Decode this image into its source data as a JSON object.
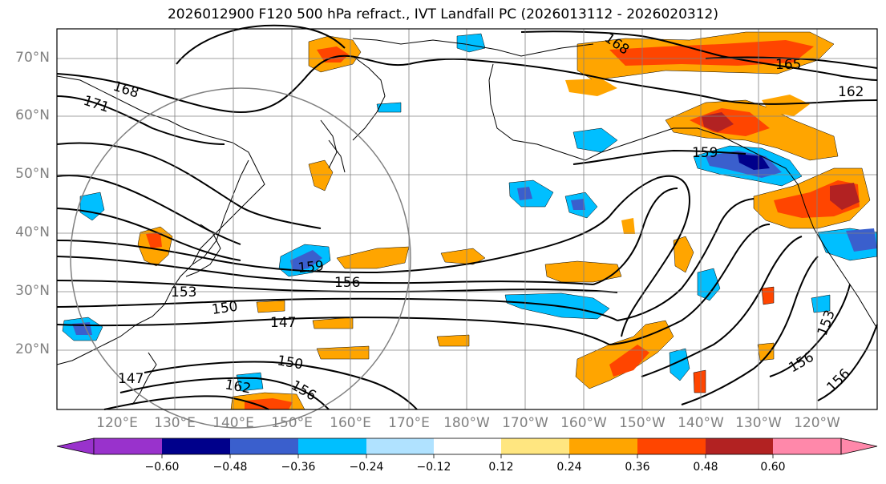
{
  "title": "2026012900 F120 500 hPa refract., IVT Landfall PC (2026013112 - 2026020312)",
  "lat_labels": [
    "70°N",
    "60°N",
    "50°N",
    "40°N",
    "30°N",
    "20°N"
  ],
  "lon_labels": [
    "120°E",
    "130°E",
    "140°E",
    "150°E",
    "160°E",
    "170°E",
    "180°W",
    "170°W",
    "160°W",
    "150°W",
    "140°W",
    "130°W",
    "120°W"
  ],
  "colorbar": {
    "ticks": [
      "−0.60",
      "−0.48",
      "−0.36",
      "−0.24",
      "−0.12",
      "0.12",
      "0.24",
      "0.36",
      "0.48",
      "0.60"
    ],
    "colors": [
      "#9932cc",
      "#00008b",
      "#3a5fcd",
      "#00bfff",
      "#b0e2ff",
      "#ffffff",
      "#ffe680",
      "#ffa500",
      "#ff4500",
      "#b22222",
      "#ff88aa"
    ]
  },
  "contour_labels": [
    "168",
    "171",
    "159",
    "156",
    "153",
    "150",
    "147",
    "150",
    "147",
    "162",
    "156",
    "159",
    "168",
    "165",
    "162",
    "153",
    "156",
    "156"
  ],
  "map": {
    "projection": "equidistant cylindrical",
    "lon_range": [
      "110°E",
      "112°W"
    ],
    "lat_range": [
      "10°N",
      "75°N"
    ],
    "grid": true,
    "contour_color": "#000000",
    "circle_color": "#808080"
  }
}
